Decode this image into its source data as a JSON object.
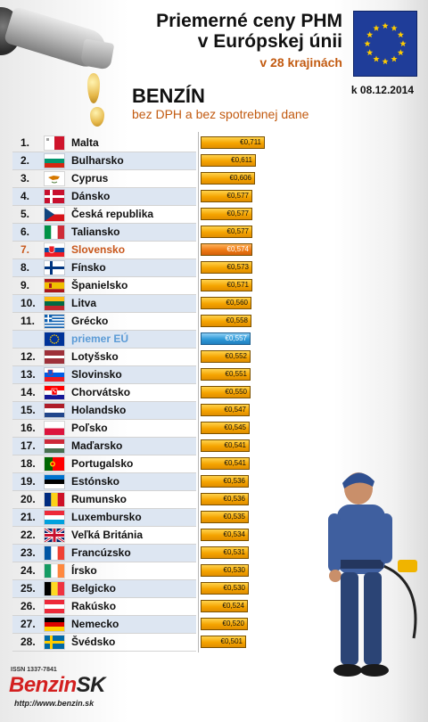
{
  "header": {
    "title_line1": "Priemerné ceny PHM",
    "title_line2": "v Európskej únii",
    "subtitle": "v 28 krajinách",
    "fuel": "BENZÍN",
    "note": "bez DPH a bez spotrebnej dane",
    "date": "k 08.12.2014"
  },
  "footer": {
    "issn": "ISSN 1337-7841",
    "logo_part1": "Benzin",
    "logo_part2": "SK",
    "url": "http://www.benzin.sk"
  },
  "colors": {
    "bar": "#f5a400",
    "highlight_bar": "#ee7a14",
    "eu_bar": "#2f9ad8",
    "highlight_text": "#c8561a",
    "eu_text": "#5b9bd6",
    "accent_text": "#c25a10",
    "row_band": "#dde6f2"
  },
  "chart_data": {
    "type": "bar",
    "orientation": "horizontal",
    "title": "Priemerné ceny PHM v Európskej únii",
    "subtitle": "v 28 krajinách",
    "xlim": [
      0,
      0.711
    ],
    "rows": [
      {
        "rank": "1.",
        "country": "Malta",
        "value": 0.711,
        "label": "€0,711",
        "flag": "malta"
      },
      {
        "rank": "2.",
        "country": "Bulharsko",
        "value": 0.611,
        "label": "€0,611",
        "flag": "bulgaria"
      },
      {
        "rank": "3.",
        "country": "Cyprus",
        "value": 0.606,
        "label": "€0,606",
        "flag": "cyprus"
      },
      {
        "rank": "4.",
        "country": "Dánsko",
        "value": 0.577,
        "label": "€0,577",
        "flag": "denmark"
      },
      {
        "rank": "5.",
        "country": "Česká republika",
        "value": 0.577,
        "label": "€0,577",
        "flag": "czech"
      },
      {
        "rank": "6.",
        "country": "Taliansko",
        "value": 0.577,
        "label": "€0,577",
        "flag": "italy"
      },
      {
        "rank": "7.",
        "country": "Slovensko",
        "value": 0.574,
        "label": "€0,574",
        "flag": "slovakia",
        "highlight": true
      },
      {
        "rank": "8.",
        "country": "Fínsko",
        "value": 0.573,
        "label": "€0,573",
        "flag": "finland"
      },
      {
        "rank": "9.",
        "country": "Španielsko",
        "value": 0.571,
        "label": "€0,571",
        "flag": "spain"
      },
      {
        "rank": "10.",
        "country": "Litva",
        "value": 0.56,
        "label": "€0,560",
        "flag": "lithuania"
      },
      {
        "rank": "11.",
        "country": "Grécko",
        "value": 0.558,
        "label": "€0,558",
        "flag": "greece"
      },
      {
        "rank": "",
        "country": "priemer EÚ",
        "value": 0.557,
        "label": "€0,557",
        "flag": "eu",
        "eu": true
      },
      {
        "rank": "12.",
        "country": "Lotyšsko",
        "value": 0.552,
        "label": "€0,552",
        "flag": "latvia"
      },
      {
        "rank": "13.",
        "country": "Slovinsko",
        "value": 0.551,
        "label": "€0,551",
        "flag": "slovenia"
      },
      {
        "rank": "14.",
        "country": "Chorvátsko",
        "value": 0.55,
        "label": "€0,550",
        "flag": "croatia"
      },
      {
        "rank": "15.",
        "country": "Holandsko",
        "value": 0.547,
        "label": "€0,547",
        "flag": "netherlands"
      },
      {
        "rank": "16.",
        "country": "Poľsko",
        "value": 0.545,
        "label": "€0,545",
        "flag": "poland"
      },
      {
        "rank": "17.",
        "country": "Maďarsko",
        "value": 0.541,
        "label": "€0,541",
        "flag": "hungary"
      },
      {
        "rank": "18.",
        "country": "Portugalsko",
        "value": 0.541,
        "label": "€0,541",
        "flag": "portugal"
      },
      {
        "rank": "19.",
        "country": "Estónsko",
        "value": 0.536,
        "label": "€0,536",
        "flag": "estonia"
      },
      {
        "rank": "20.",
        "country": "Rumunsko",
        "value": 0.536,
        "label": "€0,536",
        "flag": "romania"
      },
      {
        "rank": "21.",
        "country": "Luxembursko",
        "value": 0.535,
        "label": "€0,535",
        "flag": "luxembourg"
      },
      {
        "rank": "22.",
        "country": "Veľká Británia",
        "value": 0.534,
        "label": "€0,534",
        "flag": "uk"
      },
      {
        "rank": "23.",
        "country": "Francúzsko",
        "value": 0.531,
        "label": "€0,531",
        "flag": "france"
      },
      {
        "rank": "24.",
        "country": "Írsko",
        "value": 0.53,
        "label": "€0,530",
        "flag": "ireland"
      },
      {
        "rank": "25.",
        "country": "Belgicko",
        "value": 0.53,
        "label": "€0,530",
        "flag": "belgium"
      },
      {
        "rank": "26.",
        "country": "Rakúsko",
        "value": 0.524,
        "label": "€0,524",
        "flag": "austria"
      },
      {
        "rank": "27.",
        "country": "Nemecko",
        "value": 0.52,
        "label": "€0,520",
        "flag": "germany"
      },
      {
        "rank": "28.",
        "country": "Švédsko",
        "value": 0.501,
        "label": "€0,501",
        "flag": "sweden"
      }
    ]
  }
}
